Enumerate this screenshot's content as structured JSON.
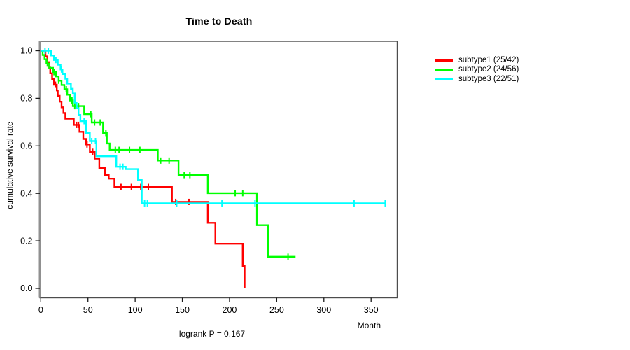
{
  "chart_data": {
    "type": "line",
    "subtype": "kaplan-meier-step-curves",
    "title": "Time to Death",
    "xlabel": "Month",
    "ylabel": "cumulative survival rate",
    "footnote": "logrank P = 0.167",
    "xlim": [
      0,
      350
    ],
    "ylim": [
      0.0,
      1.0
    ],
    "grid": false,
    "legend_position": "right-outside",
    "xticks": [
      {
        "v": 0,
        "label": "0"
      },
      {
        "v": 50,
        "label": "50"
      },
      {
        "v": 100,
        "label": "100"
      },
      {
        "v": 150,
        "label": "150"
      },
      {
        "v": 200,
        "label": "200"
      },
      {
        "v": 250,
        "label": "250"
      },
      {
        "v": 300,
        "label": "300"
      },
      {
        "v": 350,
        "label": "350"
      }
    ],
    "yticks": [
      {
        "v": 0.0,
        "label": "0.0"
      },
      {
        "v": 0.2,
        "label": "0.2"
      },
      {
        "v": 0.4,
        "label": "0.4"
      },
      {
        "v": 0.6,
        "label": "0.6"
      },
      {
        "v": 0.8,
        "label": "0.8"
      },
      {
        "v": 1.0,
        "label": "1.0"
      }
    ],
    "axis_colors": {
      "box": "#4d4d4d",
      "y_axis_line": "#909090",
      "tick": "#1a1a1a",
      "text": "#000000"
    },
    "series": [
      {
        "name": "subtype1 (25/42)",
        "color": "#ff0000",
        "steps": [
          [
            0,
            1.0
          ],
          [
            5,
            0.976
          ],
          [
            7,
            0.952
          ],
          [
            9,
            0.929
          ],
          [
            10,
            0.905
          ],
          [
            12,
            0.881
          ],
          [
            14,
            0.857
          ],
          [
            17,
            0.833
          ],
          [
            18,
            0.81
          ],
          [
            20,
            0.786
          ],
          [
            22,
            0.762
          ],
          [
            24,
            0.738
          ],
          [
            26,
            0.714
          ],
          [
            35,
            0.688
          ],
          [
            41,
            0.659
          ],
          [
            45,
            0.629
          ],
          [
            48,
            0.606
          ],
          [
            52,
            0.575
          ],
          [
            57,
            0.546
          ],
          [
            62,
            0.507
          ],
          [
            68,
            0.477
          ],
          [
            72,
            0.462
          ],
          [
            78,
            0.427
          ],
          [
            139,
            0.364
          ],
          [
            177,
            0.276
          ],
          [
            185,
            0.188
          ],
          [
            214,
            0.094
          ],
          [
            216,
            0.0
          ]
        ],
        "censor_times": [
          15.5,
          38,
          40,
          49,
          55,
          85,
          96,
          106,
          114,
          143,
          157
        ]
      },
      {
        "name": "subtype2 (24/56)",
        "color": "#00ff00",
        "steps": [
          [
            0,
            1.0
          ],
          [
            2,
            0.982
          ],
          [
            4,
            0.964
          ],
          [
            6,
            0.946
          ],
          [
            9,
            0.928
          ],
          [
            13,
            0.91
          ],
          [
            16,
            0.892
          ],
          [
            19,
            0.874
          ],
          [
            22,
            0.856
          ],
          [
            25,
            0.838
          ],
          [
            28,
            0.815
          ],
          [
            31,
            0.791
          ],
          [
            34,
            0.767
          ],
          [
            46,
            0.733
          ],
          [
            54,
            0.698
          ],
          [
            66,
            0.654
          ],
          [
            70,
            0.61
          ],
          [
            73,
            0.583
          ],
          [
            124,
            0.538
          ],
          [
            146,
            0.477
          ],
          [
            177,
            0.401
          ],
          [
            229,
            0.266
          ],
          [
            241,
            0.133
          ],
          [
            270,
            0.133
          ]
        ],
        "censor_times": [
          7,
          14,
          19,
          27,
          33,
          36,
          40,
          53,
          57,
          63,
          69,
          79,
          83,
          94,
          105,
          127,
          136,
          152,
          158,
          206,
          214,
          262
        ]
      },
      {
        "name": "subtype3 (22/51)",
        "color": "#00ffff",
        "steps": [
          [
            0,
            1.0
          ],
          [
            11,
            0.98
          ],
          [
            14,
            0.961
          ],
          [
            18,
            0.941
          ],
          [
            21,
            0.921
          ],
          [
            23,
            0.902
          ],
          [
            26,
            0.882
          ],
          [
            28,
            0.862
          ],
          [
            32,
            0.84
          ],
          [
            34,
            0.82
          ],
          [
            36,
            0.782
          ],
          [
            38,
            0.758
          ],
          [
            40,
            0.73
          ],
          [
            42,
            0.704
          ],
          [
            48,
            0.654
          ],
          [
            52,
            0.62
          ],
          [
            59,
            0.556
          ],
          [
            80,
            0.512
          ],
          [
            90,
            0.502
          ],
          [
            103,
            0.457
          ],
          [
            107,
            0.358
          ],
          [
            365,
            0.358
          ]
        ],
        "censor_times": [
          4.5,
          8,
          16,
          22,
          46,
          54,
          58,
          84,
          87,
          110,
          113,
          144,
          192,
          227,
          332,
          365
        ]
      }
    ]
  }
}
